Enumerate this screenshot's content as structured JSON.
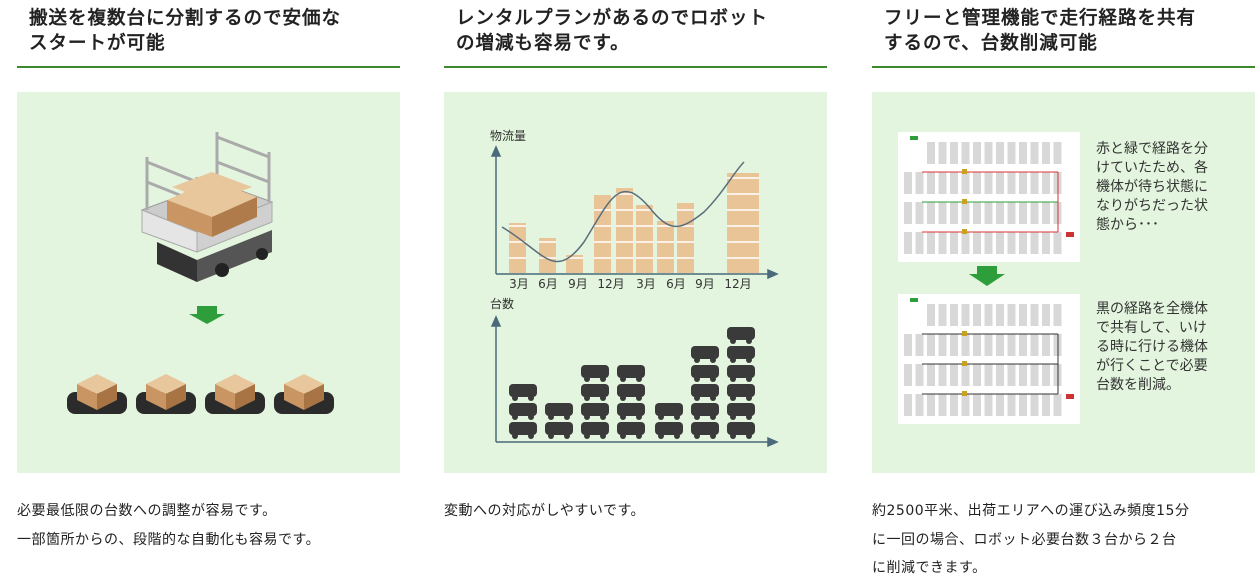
{
  "columns": [
    {
      "title": [
        "搬送を複数台に分割するので安価な",
        "スタートが可能"
      ],
      "description": [
        "必要最低限の台数への調整が容易です。",
        "一部箇所からの、段階的な自動化も容易です。"
      ]
    },
    {
      "title": [
        "レンタルプランがあるのでロボット",
        "の増減も容易です。"
      ],
      "illustration": {
        "top_label": "物流量",
        "months": [
          "3月",
          "6月",
          "9月",
          "12月",
          "3月",
          "6月",
          "9月",
          "12月"
        ],
        "bottom_label": "台数"
      },
      "description": [
        "変動への対応がしやすいです。"
      ]
    },
    {
      "title": [
        "フリーと管理機能で走行経路を共有",
        "するので、台数削減可能"
      ],
      "illustration": {
        "before": [
          "赤と緑で経路を分",
          "けていたため、各",
          "機体が待ち状態に",
          "なりがちだった状",
          "態から･･･"
        ],
        "after": [
          "黒の経路を全機体",
          "で共有して、いけ",
          "る時に行ける機体",
          "が行くことで必要",
          "台数を削減。"
        ]
      },
      "description": [
        "約2500平米、出荷エリアへの運び込み頻度15分",
        "に一回の場合、ロボット必要台数３台から２台",
        "に削減できます。"
      ]
    }
  ]
}
